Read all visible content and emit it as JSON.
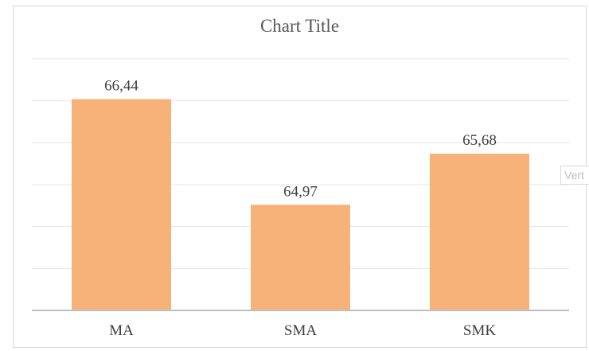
{
  "chart_data": {
    "type": "bar",
    "title": "Chart Title",
    "categories": [
      "MA",
      "SMA",
      "SMK"
    ],
    "values": [
      66.44,
      64.97,
      65.68
    ],
    "data_labels": [
      "66,44",
      "64,97",
      "65,68"
    ],
    "xlabel": "",
    "ylabel": "",
    "ylim": [
      63.5,
      67.0
    ],
    "grid": true,
    "legend": "none",
    "bar_color": "#f7b27a"
  },
  "side_tag": {
    "text": "Vert"
  }
}
